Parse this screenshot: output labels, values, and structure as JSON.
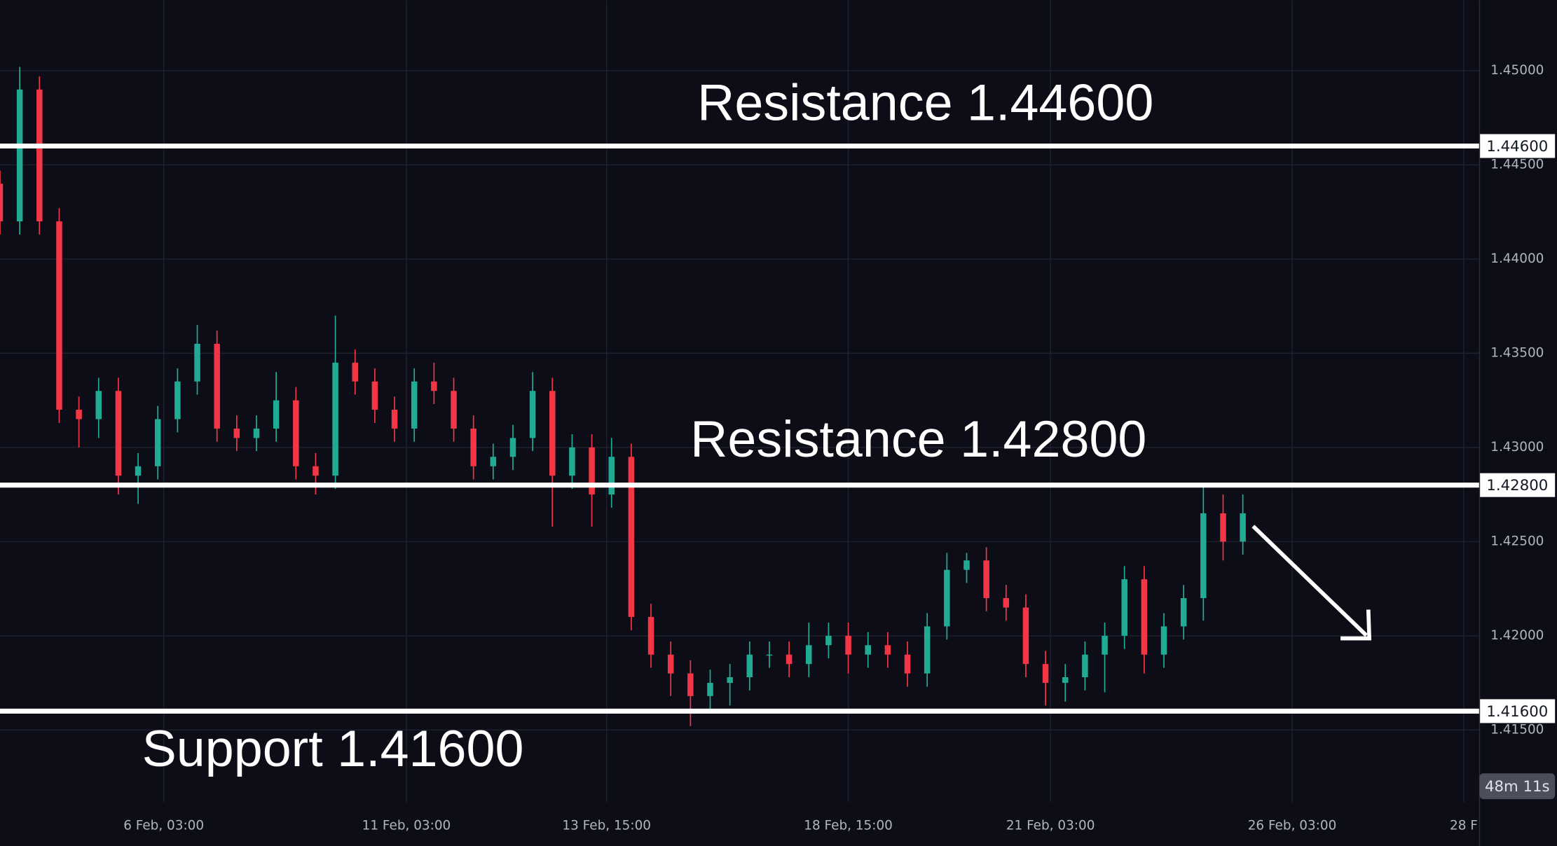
{
  "chart_data": {
    "type": "candlestick",
    "up_color": "#22ab94",
    "down_color": "#f23645",
    "grid": true,
    "xlim": [
      0,
      75
    ],
    "xticks": [
      {
        "value": 8.3,
        "label": "6 Feb, 03:00"
      },
      {
        "value": 20.6,
        "label": "11 Feb, 03:00"
      },
      {
        "value": 30.75,
        "label": "13 Feb, 15:00"
      },
      {
        "value": 43.0,
        "label": "18 Feb, 15:00"
      },
      {
        "value": 53.25,
        "label": "21 Feb, 03:00"
      },
      {
        "value": 65.5,
        "label": "26 Feb, 03:00"
      },
      {
        "value": 74.2,
        "label": "28 F"
      }
    ],
    "ylim": [
      1.41117,
      1.45374
    ],
    "yticks": [
      {
        "value": 1.415,
        "label": "1.41500"
      },
      {
        "value": 1.42,
        "label": "1.42000"
      },
      {
        "value": 1.425,
        "label": "1.42500"
      },
      {
        "value": 1.43,
        "label": "1.43000"
      },
      {
        "value": 1.435,
        "label": "1.43500"
      },
      {
        "value": 1.44,
        "label": "1.44000"
      },
      {
        "value": 1.445,
        "label": "1.44500"
      },
      {
        "value": 1.45,
        "label": "1.45000"
      }
    ],
    "open": [
      1.444,
      1.442,
      1.449,
      1.442,
      1.432,
      1.4315,
      1.433,
      1.4285,
      1.429,
      1.4315,
      1.4335,
      1.4355,
      1.431,
      1.4305,
      1.431,
      1.4325,
      1.429,
      1.4285,
      1.4345,
      1.4335,
      1.432,
      1.431,
      1.4335,
      1.433,
      1.431,
      1.429,
      1.4295,
      1.4305,
      1.433,
      1.4285,
      1.43,
      1.4275,
      1.4295,
      1.421,
      1.419,
      1.418,
      1.4168,
      1.4175,
      1.4178,
      1.419,
      1.419,
      1.4185,
      1.4195,
      1.42,
      1.419,
      1.4195,
      1.419,
      1.418,
      1.4205,
      1.4235,
      1.424,
      1.422,
      1.4215,
      1.4185,
      1.4175,
      1.4178,
      1.419,
      1.42,
      1.423,
      1.419,
      1.4205,
      1.422,
      1.4265,
      1.425
    ],
    "high": [
      1.4447,
      1.4502,
      1.4497,
      1.4427,
      1.4327,
      1.4337,
      1.4337,
      1.4297,
      1.4322,
      1.4342,
      1.4365,
      1.4362,
      1.4317,
      1.4317,
      1.434,
      1.4332,
      1.4297,
      1.437,
      1.4352,
      1.4342,
      1.4327,
      1.4342,
      1.4345,
      1.4337,
      1.4317,
      1.4302,
      1.4312,
      1.434,
      1.4337,
      1.4307,
      1.4307,
      1.4305,
      1.4302,
      1.4217,
      1.4197,
      1.4187,
      1.4182,
      1.4185,
      1.4197,
      1.4197,
      1.4197,
      1.4207,
      1.4207,
      1.4207,
      1.4202,
      1.4202,
      1.4197,
      1.4212,
      1.4244,
      1.4244,
      1.4247,
      1.4227,
      1.4222,
      1.4192,
      1.4185,
      1.4197,
      1.4207,
      1.4237,
      1.4237,
      1.4212,
      1.4227,
      1.428,
      1.4275,
      1.4275
    ],
    "low": [
      1.4413,
      1.4413,
      1.4413,
      1.4313,
      1.43,
      1.4305,
      1.4275,
      1.427,
      1.4283,
      1.4308,
      1.4328,
      1.4303,
      1.4298,
      1.4298,
      1.4303,
      1.4283,
      1.4275,
      1.4278,
      1.4328,
      1.4313,
      1.4303,
      1.4303,
      1.4323,
      1.4303,
      1.4283,
      1.4283,
      1.4288,
      1.4298,
      1.4258,
      1.4278,
      1.4258,
      1.4268,
      1.4203,
      1.4183,
      1.4168,
      1.4152,
      1.4161,
      1.4163,
      1.4171,
      1.4183,
      1.4178,
      1.4178,
      1.4188,
      1.418,
      1.4183,
      1.4183,
      1.4173,
      1.4173,
      1.4198,
      1.4228,
      1.4213,
      1.4208,
      1.4178,
      1.4163,
      1.4165,
      1.4171,
      1.417,
      1.4193,
      1.418,
      1.4183,
      1.4198,
      1.4208,
      1.424,
      1.4243
    ],
    "close": [
      1.442,
      1.449,
      1.442,
      1.432,
      1.4315,
      1.433,
      1.4285,
      1.429,
      1.4315,
      1.4335,
      1.4355,
      1.431,
      1.4305,
      1.431,
      1.4325,
      1.429,
      1.4285,
      1.4345,
      1.4335,
      1.432,
      1.431,
      1.4335,
      1.433,
      1.431,
      1.429,
      1.4295,
      1.4305,
      1.433,
      1.4285,
      1.43,
      1.4275,
      1.4295,
      1.421,
      1.419,
      1.418,
      1.4168,
      1.4175,
      1.4178,
      1.419,
      1.419,
      1.4185,
      1.4195,
      1.42,
      1.419,
      1.4195,
      1.419,
      1.418,
      1.4205,
      1.4235,
      1.424,
      1.422,
      1.4215,
      1.4185,
      1.4175,
      1.4178,
      1.419,
      1.42,
      1.423,
      1.419,
      1.4205,
      1.422,
      1.4265,
      1.425,
      1.4265
    ],
    "levels": [
      {
        "value": 1.446,
        "label": "1.44600",
        "text": "Resistance 1.44600"
      },
      {
        "value": 1.428,
        "label": "1.42800",
        "text": "Resistance 1.42800"
      },
      {
        "value": 1.416,
        "label": "1.41600",
        "text": "Support 1.41600"
      }
    ],
    "countdown": "48m 11s"
  }
}
